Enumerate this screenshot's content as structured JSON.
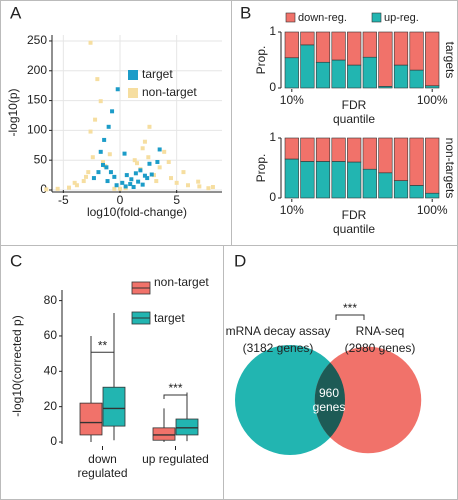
{
  "chart_data": [
    {
      "type": "scatter",
      "panel": "A",
      "xlabel": "log10(fold-change)",
      "ylabel": "-log10(p)",
      "xlim": [
        -6,
        9
      ],
      "ylim": [
        0,
        260
      ],
      "xticks": [
        -5,
        0,
        5
      ],
      "yticks": [
        0,
        50,
        100,
        150,
        200,
        250
      ],
      "grid": true,
      "series": [
        {
          "name": "target",
          "color": "#1c9cc8",
          "x": [
            -0.2,
            -0.7,
            -1.0,
            -1.4,
            0.4,
            3.5,
            3.3,
            -1.7,
            2.6,
            -1.2,
            -0.8,
            -0.5,
            0.6,
            1.0,
            1.4,
            1.8,
            2.2,
            -1.9,
            -1.5,
            0.2,
            0.9,
            1.6,
            2.4,
            -1.1,
            -0.3,
            0.5,
            1.2,
            2.0,
            -2.3,
            2.8
          ],
          "values": [
            169,
            132,
            106,
            84,
            61,
            68,
            47,
            64,
            44,
            38,
            30,
            22,
            25,
            18,
            28,
            33,
            24,
            30,
            42,
            12,
            10,
            14,
            20,
            15,
            8,
            6,
            5,
            9,
            20,
            26
          ]
        },
        {
          "name": "non-target",
          "color": "#f6dea0",
          "x": [
            -2.6,
            -2.0,
            -1.7,
            -2.2,
            -2.6,
            -1.5,
            2.2,
            2.6,
            3.9,
            4.3,
            5.6,
            6.9,
            8.2,
            -6.5,
            -5.5,
            -4.5,
            -3.8,
            -3.2,
            -2.8,
            -2.4,
            -1.3,
            -0.9,
            1.3,
            1.8,
            2.5,
            3.0,
            3.5,
            4.5,
            5.0,
            6.0,
            7.0,
            7.8,
            -4.0,
            -3.0,
            1.5,
            2.0,
            0.0,
            0.5,
            -0.5,
            3.2
          ],
          "values": [
            247,
            186,
            149,
            118,
            98,
            47,
            81,
            106,
            64,
            47,
            30,
            14,
            5,
            1,
            2,
            4,
            8,
            15,
            30,
            55,
            40,
            60,
            50,
            35,
            55,
            25,
            38,
            20,
            12,
            8,
            6,
            3,
            12,
            22,
            45,
            70,
            2,
            3,
            2,
            15
          ]
        }
      ]
    },
    {
      "type": "bar",
      "panel": "B",
      "stacked": true,
      "legend": true,
      "ylabel": "Prop.",
      "xlabel": "FDR quantile",
      "side_label": "targets",
      "ylim": [
        0,
        1
      ],
      "yticks": [
        0,
        1
      ],
      "categories": [
        "10%",
        null,
        null,
        null,
        null,
        null,
        null,
        null,
        null,
        "100%"
      ],
      "series": [
        {
          "name": "up-reg.",
          "color": "#22b5b1",
          "values": [
            0.54,
            0.77,
            0.46,
            0.5,
            0.41,
            0.55,
            0.03,
            0.41,
            0.32,
            0.04
          ]
        },
        {
          "name": "down-reg.",
          "color": "#f1726a",
          "values": [
            0.46,
            0.23,
            0.54,
            0.5,
            0.59,
            0.45,
            0.97,
            0.59,
            0.68,
            0.96
          ]
        }
      ]
    },
    {
      "type": "bar",
      "stacked": true,
      "legend": false,
      "ylabel": "Prop.",
      "xlabel": "FDR quantile",
      "side_label": "non-targets",
      "ylim": [
        0,
        1
      ],
      "yticks": [
        0,
        1
      ],
      "categories": [
        "10%",
        null,
        null,
        null,
        null,
        null,
        null,
        null,
        null,
        "100%"
      ],
      "series": [
        {
          "name": "up-reg.",
          "color": "#22b5b1",
          "values": [
            0.65,
            0.61,
            0.61,
            0.61,
            0.6,
            0.48,
            0.42,
            0.29,
            0.21,
            0.08
          ]
        },
        {
          "name": "down-reg.",
          "color": "#f1726a",
          "values": [
            0.35,
            0.39,
            0.39,
            0.39,
            0.4,
            0.52,
            0.58,
            0.71,
            0.79,
            0.92
          ]
        }
      ]
    },
    {
      "type": "box",
      "panel": "C",
      "ylabel": "-log10(corrected p)",
      "ylim": [
        0,
        86
      ],
      "yticks": [
        0,
        20,
        40,
        60,
        80
      ],
      "categories": [
        "down regulated",
        "up regulated"
      ],
      "significance": [
        "**",
        "***"
      ],
      "series": [
        {
          "name": "non-target",
          "color": "#f1726a",
          "boxes": [
            {
              "whislo": 0,
              "q1": 4,
              "med": 11,
              "q3": 22,
              "whishi": 60
            },
            {
              "whislo": 0,
              "q1": 1,
              "med": 4,
              "q3": 8,
              "whishi": 19
            }
          ]
        },
        {
          "name": "target",
          "color": "#22b5b1",
          "boxes": [
            {
              "whislo": 1,
              "q1": 9,
              "med": 19,
              "q3": 31,
              "whishi": 73
            },
            {
              "whislo": 0.5,
              "q1": 4,
              "med": 8,
              "q3": 13,
              "whishi": 28
            }
          ]
        }
      ]
    },
    {
      "type": "venn",
      "panel": "D",
      "significance": "***",
      "sets": [
        {
          "name": "mRNA decay assay",
          "size": 3182,
          "size_label": "(3182 genes)",
          "color": "#22b5b1"
        },
        {
          "name": "RNA-seq",
          "size": 2980,
          "size_label": "(2980 genes)",
          "color": "#f1726a"
        }
      ],
      "overlap": 960,
      "overlap_label": "960 genes",
      "overlap_color": "#1d5b56"
    }
  ]
}
